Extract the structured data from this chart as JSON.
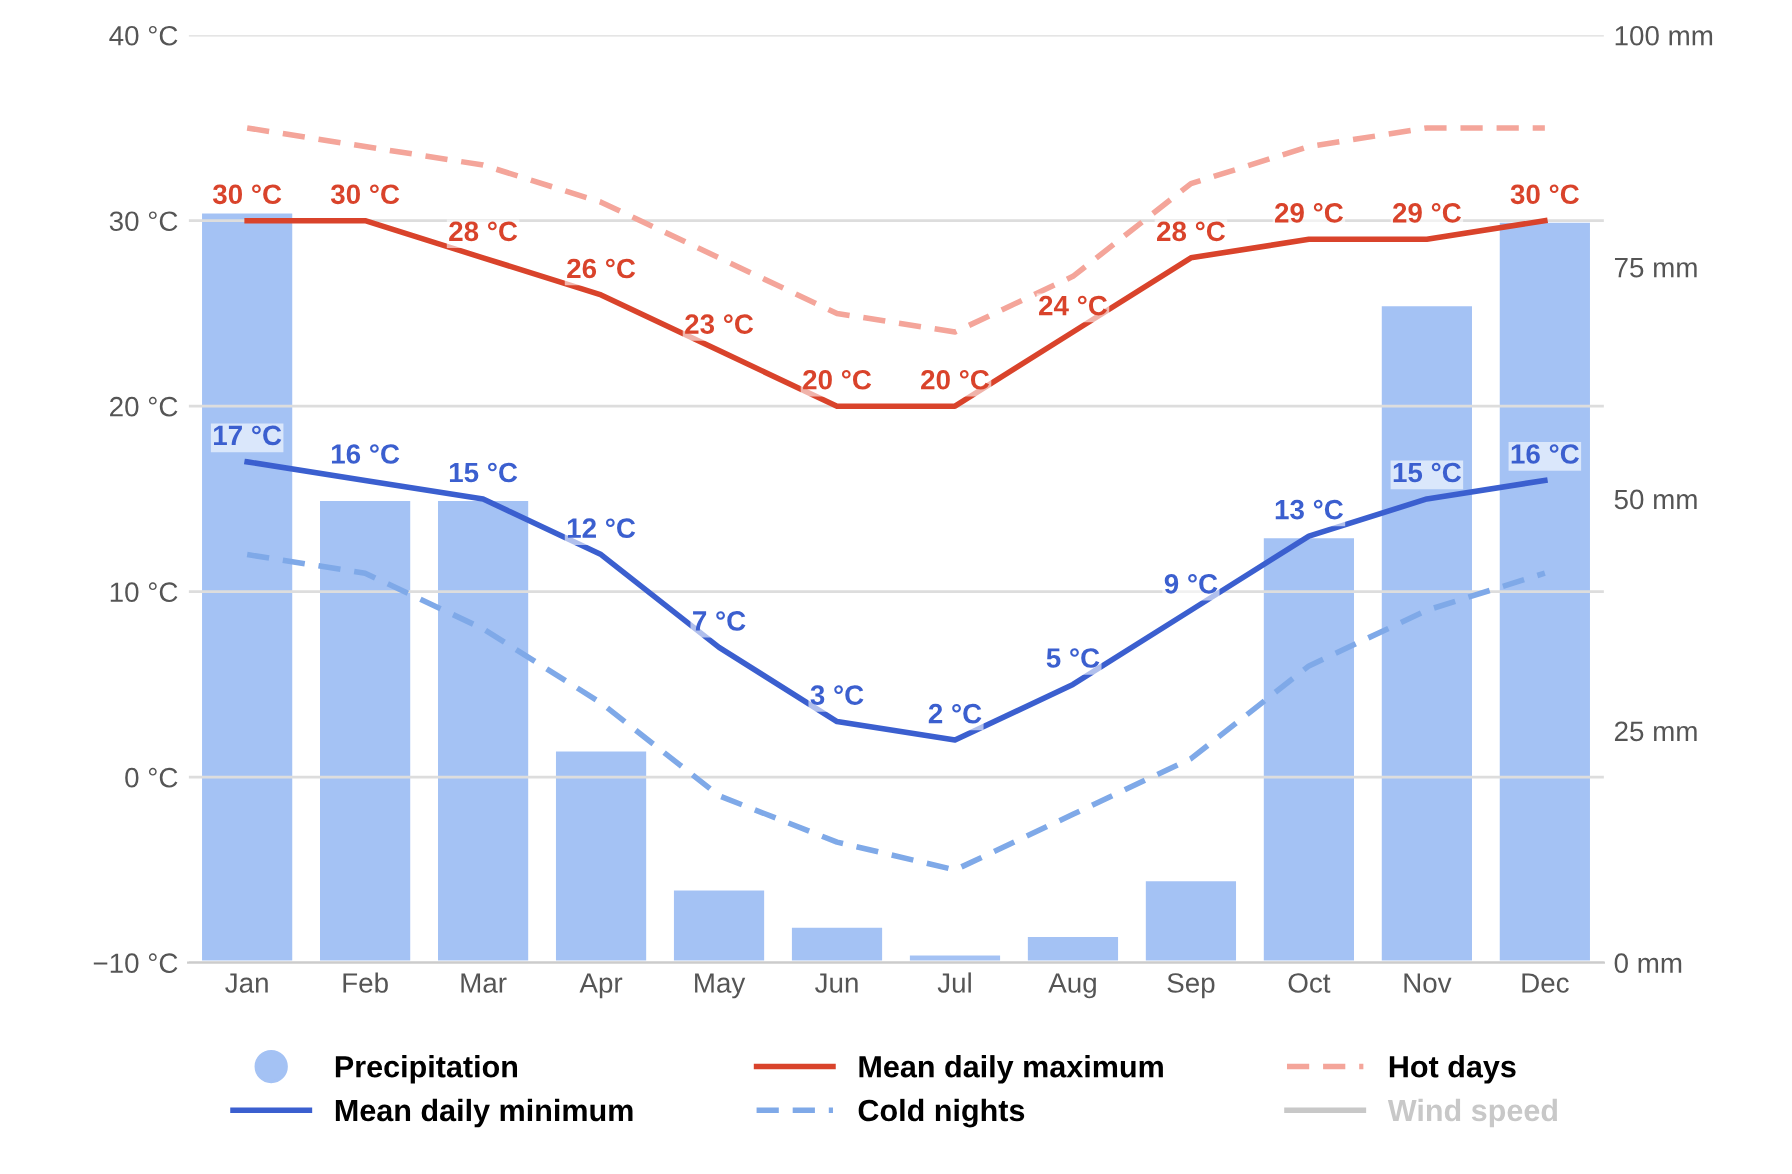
{
  "chart_data": {
    "type": "line",
    "categories": [
      "Jan",
      "Feb",
      "Mar",
      "Apr",
      "May",
      "Jun",
      "Jul",
      "Aug",
      "Sep",
      "Oct",
      "Nov",
      "Dec"
    ],
    "series": [
      {
        "name": "Precipitation",
        "type": "bar",
        "axis": "y2",
        "color": "#a4c2f4",
        "values": [
          81,
          50,
          50,
          23,
          8,
          4,
          1,
          3,
          9,
          46,
          71,
          80
        ]
      },
      {
        "name": "Mean daily maximum",
        "color": "#d9432b",
        "line_style": "solid",
        "values": [
          30,
          30,
          28,
          26,
          23,
          20,
          20,
          24,
          28,
          29,
          29,
          30
        ],
        "value_labels": [
          "30 °C",
          "30 °C",
          "28 °C",
          "26 °C",
          "23 °C",
          "20 °C",
          "20 °C",
          "24 °C",
          "28 °C",
          "29 °C",
          "29 °C",
          "30 °C"
        ]
      },
      {
        "name": "Hot days",
        "color": "#f4a59a",
        "line_style": "dashed",
        "values": [
          35,
          34,
          33,
          31,
          28,
          25,
          24,
          27,
          32,
          34,
          35,
          35
        ]
      },
      {
        "name": "Mean daily minimum",
        "color": "#3b5fcf",
        "line_style": "solid",
        "values": [
          17,
          16,
          15,
          12,
          7,
          3,
          2,
          5,
          9,
          13,
          15,
          16
        ],
        "value_labels": [
          "17 °C",
          "16 °C",
          "15 °C",
          "12 °C",
          "7 °C",
          "3 °C",
          "2 °C",
          "5 °C",
          "9 °C",
          "13 °C",
          "15 °C",
          "16 °C"
        ]
      },
      {
        "name": "Cold nights",
        "color": "#7fa9e8",
        "line_style": "dashed",
        "values": [
          12,
          11,
          8,
          4,
          -1,
          -3.5,
          -5,
          -2,
          1,
          6,
          9,
          11
        ]
      },
      {
        "name": "Wind speed",
        "color": "#c8c8c8",
        "line_style": "solid",
        "values": [
          null,
          null,
          null,
          null,
          null,
          null,
          null,
          null,
          null,
          null,
          null,
          null
        ]
      }
    ],
    "ylim": [
      -10,
      40
    ],
    "yticks": [
      {
        "value": -10,
        "label": "−10 °C"
      },
      {
        "value": 0,
        "label": "0 °C"
      },
      {
        "value": 10,
        "label": "10 °C"
      },
      {
        "value": 20,
        "label": "20 °C"
      },
      {
        "value": 30,
        "label": "30 °C"
      },
      {
        "value": 40,
        "label": "40 °C"
      }
    ],
    "y2lim": [
      0,
      100
    ],
    "y2ticks": [
      {
        "value": 0,
        "label": "0 mm"
      },
      {
        "value": 25,
        "label": "25 mm"
      },
      {
        "value": 50,
        "label": "50 mm"
      },
      {
        "value": 75,
        "label": "75 mm"
      },
      {
        "value": 100,
        "label": "100 mm"
      }
    ],
    "grid": "y",
    "legend": "bottom"
  }
}
